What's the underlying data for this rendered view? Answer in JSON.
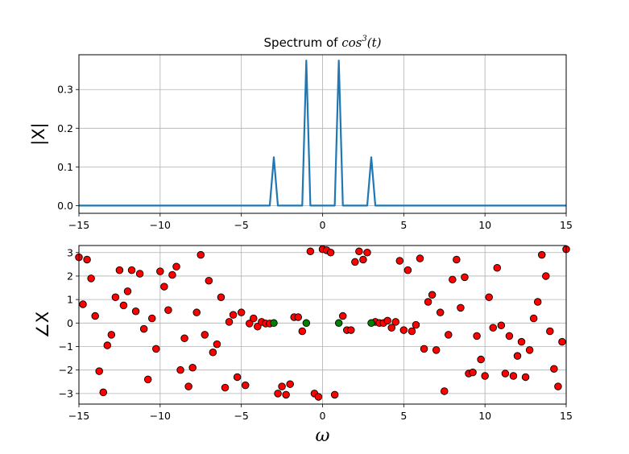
{
  "chart_data": [
    {
      "type": "line",
      "title": "Spectrum of cos³(t)",
      "title_parts": {
        "prefix": "Spectrum of ",
        "func": "cos",
        "exponent": "3",
        "arg": "(t)"
      },
      "ylabel": "|X|",
      "xlabel": "",
      "xlim": [
        -15,
        15
      ],
      "ylim": [
        -0.02,
        0.39
      ],
      "xticks": [
        -15,
        -10,
        -5,
        0,
        5,
        10,
        15
      ],
      "xtick_labels": [
        "−15",
        "−10",
        "−5",
        "0",
        "5",
        "10",
        "15"
      ],
      "yticks": [
        0.0,
        0.1,
        0.2,
        0.3
      ],
      "ytick_labels": [
        "0.0",
        "0.1",
        "0.2",
        "0.3"
      ],
      "grid": true,
      "color": "#1f77b4",
      "series": [
        {
          "x": [
            -15,
            -3.25,
            -3.0,
            -2.75,
            -1.25,
            -1.0,
            -0.75,
            0.75,
            1.0,
            1.25,
            2.75,
            3.0,
            3.25,
            15
          ],
          "y": [
            0,
            0,
            0.125,
            0,
            0,
            0.375,
            0,
            0,
            0.375,
            0,
            0,
            0.125,
            0,
            0
          ]
        }
      ]
    },
    {
      "type": "scatter",
      "ylabel": "∠X",
      "xlabel": "ω",
      "xlim": [
        -15,
        15
      ],
      "ylim": [
        -3.45,
        3.3
      ],
      "xticks": [
        -15,
        -10,
        -5,
        0,
        5,
        10,
        15
      ],
      "xtick_labels": [
        "−15",
        "−10",
        "−5",
        "0",
        "5",
        "10",
        "15"
      ],
      "yticks": [
        -3,
        -2,
        -1,
        0,
        1,
        2,
        3
      ],
      "ytick_labels": [
        "−3",
        "−2",
        "−1",
        "0",
        "1",
        "2",
        "3"
      ],
      "grid": true,
      "series": [
        {
          "color": "#ff0000",
          "points": [
            [
              -15.0,
              2.8
            ],
            [
              -14.75,
              0.8
            ],
            [
              -14.5,
              2.7
            ],
            [
              -14.25,
              1.9
            ],
            [
              -14.0,
              0.3
            ],
            [
              -13.75,
              -2.05
            ],
            [
              -13.5,
              -2.95
            ],
            [
              -13.25,
              -0.95
            ],
            [
              -13.0,
              -0.5
            ],
            [
              -12.75,
              1.1
            ],
            [
              -12.5,
              2.25
            ],
            [
              -12.25,
              0.75
            ],
            [
              -12.0,
              1.35
            ],
            [
              -11.75,
              2.25
            ],
            [
              -11.5,
              0.5
            ],
            [
              -11.25,
              2.1
            ],
            [
              -11.0,
              -0.25
            ],
            [
              -10.75,
              -2.4
            ],
            [
              -10.5,
              0.2
            ],
            [
              -10.25,
              -1.1
            ],
            [
              -10.0,
              2.2
            ],
            [
              -9.75,
              1.55
            ],
            [
              -9.5,
              0.55
            ],
            [
              -9.25,
              2.05
            ],
            [
              -9.0,
              2.4
            ],
            [
              -8.75,
              -2.0
            ],
            [
              -8.5,
              -0.65
            ],
            [
              -8.25,
              -2.7
            ],
            [
              -8.0,
              -1.9
            ],
            [
              -7.75,
              0.45
            ],
            [
              -7.5,
              2.9
            ],
            [
              -7.25,
              -0.5
            ],
            [
              -7.0,
              1.8
            ],
            [
              -6.75,
              -1.25
            ],
            [
              -6.5,
              -0.9
            ],
            [
              -6.25,
              1.1
            ],
            [
              -6.0,
              -2.75
            ],
            [
              -5.75,
              0.05
            ],
            [
              -5.5,
              0.35
            ],
            [
              -5.25,
              -2.3
            ],
            [
              -5.0,
              0.45
            ],
            [
              -4.75,
              -2.65
            ],
            [
              -4.5,
              -0.02
            ],
            [
              -4.25,
              0.2
            ],
            [
              -4.0,
              -0.15
            ],
            [
              -3.75,
              0.05
            ],
            [
              -3.5,
              -0.02
            ],
            [
              -3.25,
              -0.02
            ],
            [
              -2.75,
              -3.0
            ],
            [
              -2.5,
              -2.7
            ],
            [
              -2.25,
              -3.05
            ],
            [
              -2.0,
              -2.6
            ],
            [
              -1.75,
              0.25
            ],
            [
              -1.5,
              0.25
            ],
            [
              -1.25,
              -0.35
            ],
            [
              -0.75,
              3.05
            ],
            [
              -0.5,
              -3.0
            ],
            [
              -0.25,
              -3.14
            ],
            [
              0.0,
              3.14
            ],
            [
              0.25,
              3.1
            ],
            [
              0.5,
              3.0
            ],
            [
              0.75,
              -3.05
            ],
            [
              1.25,
              0.3
            ],
            [
              1.5,
              -0.3
            ],
            [
              1.75,
              -0.3
            ],
            [
              2.0,
              2.6
            ],
            [
              2.25,
              3.05
            ],
            [
              2.5,
              2.7
            ],
            [
              2.75,
              3.0
            ],
            [
              3.25,
              0.05
            ],
            [
              3.5,
              0.0
            ],
            [
              3.75,
              0.0
            ],
            [
              4.0,
              0.1
            ],
            [
              4.25,
              -0.2
            ],
            [
              4.5,
              0.05
            ],
            [
              4.75,
              2.65
            ],
            [
              5.0,
              -0.3
            ],
            [
              5.25,
              2.25
            ],
            [
              5.5,
              -0.35
            ],
            [
              5.75,
              -0.08
            ],
            [
              6.0,
              2.75
            ],
            [
              6.25,
              -1.1
            ],
            [
              6.5,
              0.9
            ],
            [
              6.75,
              1.2
            ],
            [
              7.0,
              -1.15
            ],
            [
              7.25,
              0.45
            ],
            [
              7.5,
              -2.9
            ],
            [
              7.75,
              -0.5
            ],
            [
              8.0,
              1.85
            ],
            [
              8.25,
              2.7
            ],
            [
              8.5,
              0.65
            ],
            [
              8.75,
              1.95
            ],
            [
              9.0,
              -2.15
            ],
            [
              9.25,
              -2.1
            ],
            [
              9.5,
              -0.55
            ],
            [
              9.75,
              -1.55
            ],
            [
              10.0,
              -2.25
            ],
            [
              10.25,
              1.1
            ],
            [
              10.5,
              -0.2
            ],
            [
              10.75,
              2.35
            ],
            [
              11.0,
              -0.1
            ],
            [
              11.25,
              -2.15
            ],
            [
              11.5,
              -0.55
            ],
            [
              11.75,
              -2.25
            ],
            [
              12.0,
              -1.4
            ],
            [
              12.25,
              -0.8
            ],
            [
              12.5,
              -2.3
            ],
            [
              12.75,
              -1.15
            ],
            [
              13.0,
              0.2
            ],
            [
              13.25,
              0.9
            ],
            [
              13.5,
              2.9
            ],
            [
              13.75,
              2.0
            ],
            [
              14.0,
              -0.35
            ],
            [
              14.25,
              -1.95
            ],
            [
              14.5,
              -2.7
            ],
            [
              14.75,
              -0.8
            ],
            [
              15.0,
              3.14
            ]
          ]
        },
        {
          "color": "#008000",
          "points": [
            [
              -3.0,
              0.0
            ],
            [
              -1.0,
              0.0
            ],
            [
              1.0,
              0.0
            ],
            [
              3.0,
              0.0
            ]
          ]
        }
      ]
    }
  ]
}
